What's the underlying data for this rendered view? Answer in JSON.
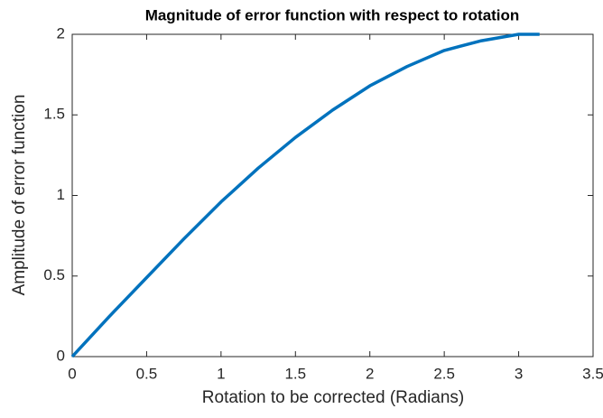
{
  "chart_data": {
    "type": "line",
    "title": "Magnitude of error function with respect to rotation",
    "x_label": "Rotation to be corrected (Radians)",
    "y_label": "Amplitude of error function",
    "x": [
      0,
      0.25,
      0.5,
      0.75,
      1,
      1.25,
      1.5,
      1.75,
      2,
      2.25,
      2.5,
      2.75,
      3,
      3.14
    ],
    "series": [
      {
        "color": "#0072bd",
        "values": [
          0,
          0.25,
          0.49,
          0.73,
          0.96,
          1.17,
          1.36,
          1.53,
          1.68,
          1.8,
          1.9,
          1.96,
          2.0,
          2.0
        ]
      }
    ],
    "xlim": [
      0,
      3.5
    ],
    "xticks": [
      0,
      0.5,
      1,
      1.5,
      2,
      2.5,
      3,
      3.5
    ],
    "ylim": [
      0,
      2
    ],
    "yticks": [
      0,
      0.5,
      1,
      1.5,
      2
    ],
    "grid": false
  }
}
